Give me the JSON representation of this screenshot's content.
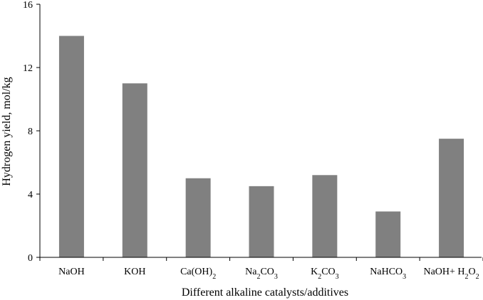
{
  "chart_data": {
    "type": "bar",
    "categories": [
      "NaOH",
      "KOH",
      "Ca(OH)2",
      "Na2CO3",
      "K2CO3",
      "NaHCO3",
      "NaOH+ H2O2"
    ],
    "category_parts": [
      [
        {
          "t": "NaOH"
        }
      ],
      [
        {
          "t": "KOH"
        }
      ],
      [
        {
          "t": "Ca(OH)"
        },
        {
          "t": "2",
          "sub": true
        }
      ],
      [
        {
          "t": "Na"
        },
        {
          "t": "2",
          "sub": true
        },
        {
          "t": "CO"
        },
        {
          "t": "3",
          "sub": true
        }
      ],
      [
        {
          "t": "K"
        },
        {
          "t": "2",
          "sub": true
        },
        {
          "t": "CO"
        },
        {
          "t": "3",
          "sub": true
        }
      ],
      [
        {
          "t": "NaHCO"
        },
        {
          "t": "3",
          "sub": true
        }
      ],
      [
        {
          "t": "NaOH+ H"
        },
        {
          "t": "2",
          "sub": true
        },
        {
          "t": "O"
        },
        {
          "t": "2",
          "sub": true
        }
      ]
    ],
    "values": [
      14.0,
      11.0,
      5.0,
      4.5,
      5.2,
      2.9,
      7.5
    ],
    "xlabel": "Different alkaline catalysts/additives",
    "ylabel": "Hydrogen yield, mol/kg",
    "ylim": [
      0,
      16
    ],
    "yticks": [
      "0",
      "4",
      "8",
      "12",
      "16"
    ],
    "bar_color": "#808080",
    "grid": false,
    "legend": "none"
  }
}
